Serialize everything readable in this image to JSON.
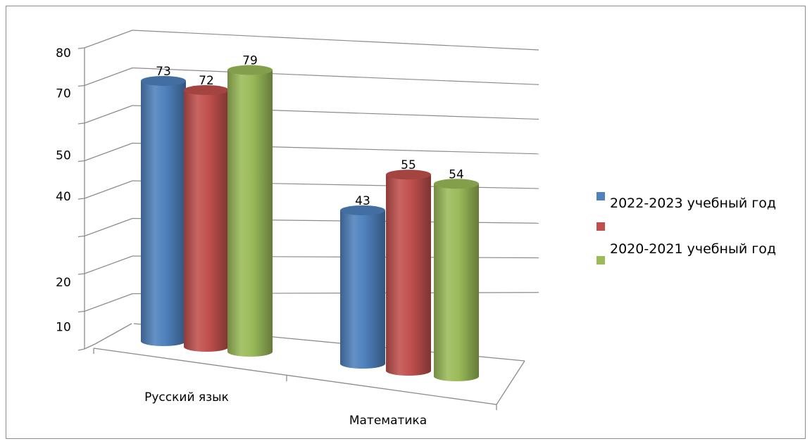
{
  "chart_data": {
    "type": "bar",
    "style": "3d-cylinder",
    "categories": [
      "Русский язык",
      "Математика"
    ],
    "series": [
      {
        "name": "2022-2023 учебный год",
        "values": [
          73,
          43
        ],
        "color": "#4f81bd"
      },
      {
        "name": "",
        "values": [
          72,
          55
        ],
        "color": "#c0504d"
      },
      {
        "name": "2020-2021 учебный год",
        "values": [
          79,
          54
        ],
        "color": "#9bbb59"
      }
    ],
    "data_labels": [
      "73",
      "72",
      "79",
      "43",
      "55",
      "54"
    ],
    "y_tick_labels": [
      "10",
      "20",
      "40",
      "50",
      "70",
      "80"
    ],
    "ylim": [
      0,
      80
    ],
    "legend_position": "right",
    "grid": true
  }
}
